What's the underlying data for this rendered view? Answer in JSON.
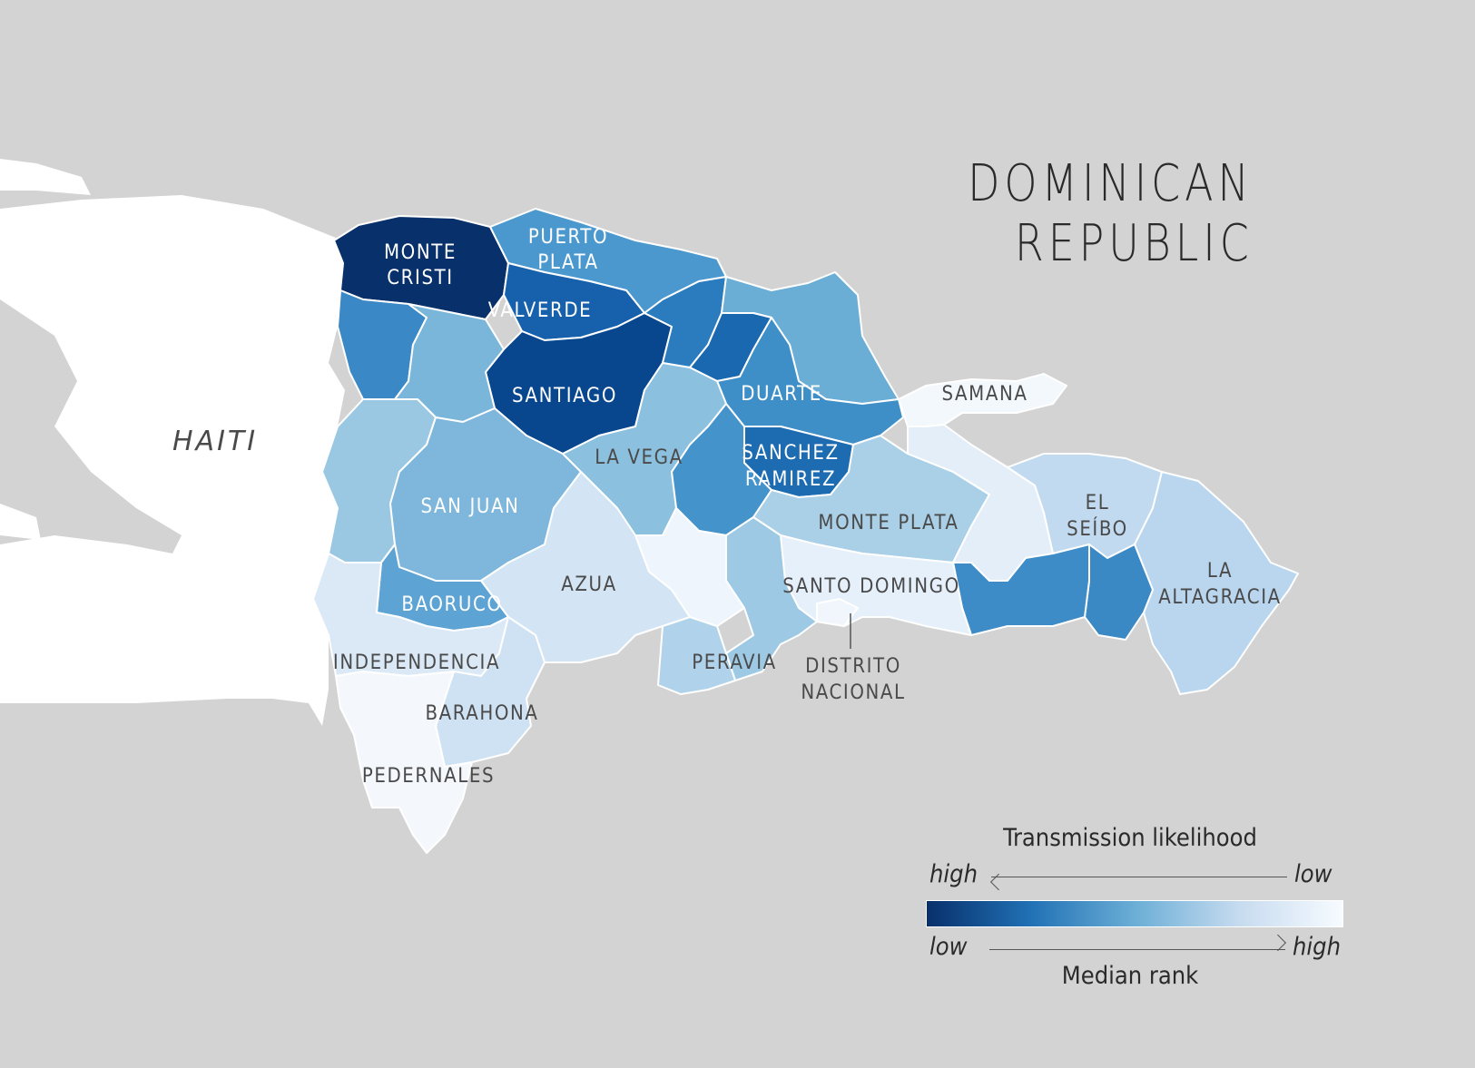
{
  "title": {
    "line1": "DOMINICAN",
    "line2": "REPUBLIC"
  },
  "neighbor": {
    "label": "HAITI"
  },
  "legend": {
    "top_title": "Transmission likelihood",
    "top_left": "high",
    "top_right": "low",
    "bottom_left": "low",
    "bottom_right": "high",
    "bottom_title": "Median rank",
    "ramp_colors": [
      "#08306b",
      "#2171b5",
      "#6baed6",
      "#c6dbef",
      "#f7fbff"
    ]
  },
  "labels": {
    "monte_cristi": [
      "MONTE",
      "CRISTI"
    ],
    "puerto_plata": [
      "PUERTO",
      "PLATA"
    ],
    "valverde": "VALVERDE",
    "santiago": "SANTIAGO",
    "duarte": "DUARTE",
    "samana": "SAMANA",
    "la_vega": "LA VEGA",
    "sanchez_ramirez": [
      "SANCHEZ",
      "RAMIREZ"
    ],
    "san_juan": "SAN JUAN",
    "monte_plata": "MONTE PLATA",
    "el_seibo": [
      "EL",
      "SEÍBO"
    ],
    "la_altagracia": [
      "LA",
      "ALTAGRACIA"
    ],
    "azua": "AZUA",
    "baoruco": "BAORUCO",
    "santo_domingo": "SANTO DOMINGO",
    "independencia": "INDEPENDENCIA",
    "peravia": "PERAVIA",
    "distrito_nacional": [
      "DISTRITO",
      "NACIONAL"
    ],
    "barahona": "BARAHONA",
    "pedernales": "PEDERNALES"
  },
  "province_colors": {
    "monte_cristi": "#08306b",
    "puerto_plata": "#4b98cf",
    "valverde": "#1761ac",
    "santiago": "#08468e",
    "espaillat": "#2b7bbf",
    "hermanas_mirabal": "#1a68b0",
    "maria_trinidad_sanchez": "#6aaed6",
    "duarte": "#3e8ec8",
    "samana": "#f3f8fd",
    "dajabon": "#3a89c6",
    "santiago_rodriguez": "#7ab6d9",
    "elias_pina": "#9ac8e3",
    "san_juan": "#7fb7dc",
    "la_vega": "#8cc0df",
    "monsenor_nouel": "#4593cb",
    "sanchez_ramirez": "#1d6cb1",
    "monte_plata": "#aad0e7",
    "hato_mayor": "#e3eef9",
    "el_seibo": "#c2daf0",
    "la_altagracia": "#b9d6ee",
    "san_pedro_de_macoris": "#3e8cc7",
    "la_romana": "#3a89c5",
    "santo_domingo": "#e6f0fa",
    "distrito_nacional": "#f0f6fc",
    "san_cristobal": "#9dc9e4",
    "peravia": "#b0d2ea",
    "san_jose_de_ocoa": "#eef5fc",
    "azua": "#d3e5f4",
    "baoruco": "#5da3d3",
    "independencia": "#dbe9f6",
    "barahona": "#cfe2f3",
    "pedernales": "#f4f8fd"
  }
}
